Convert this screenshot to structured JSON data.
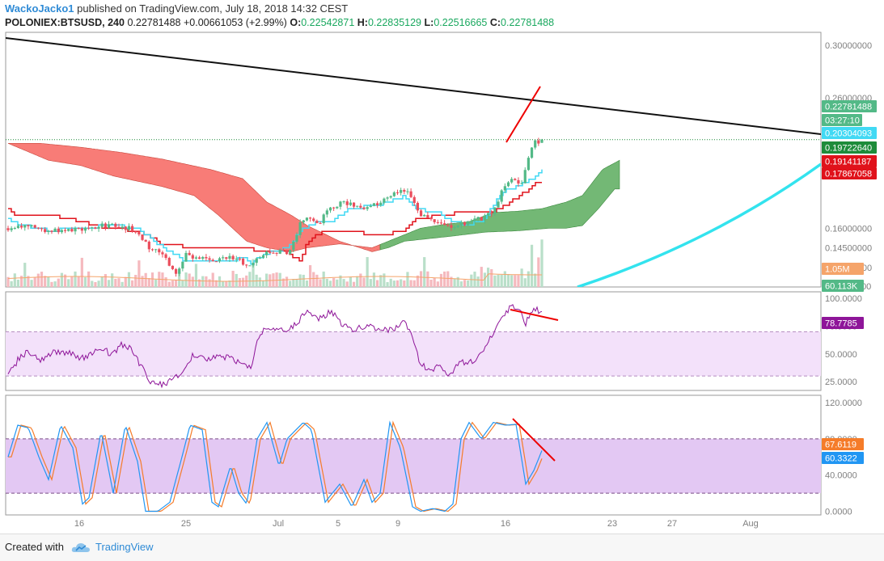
{
  "header": {
    "user": "WackoJacko1",
    "published_text": "published on TradingView.com, July 18, 2018 14:32 CEST",
    "symbol": "POLONIEX:BTSUSD, 240",
    "last": "0.22781488",
    "change": "+0.00661053 (+2.99%)",
    "o_label": "O:",
    "o_value": "0.22542871",
    "h_label": "H:",
    "h_value": "0.22835129",
    "l_label": "L:",
    "l_value": "0.22516665",
    "c_label": "C:",
    "c_value": "0.22781488"
  },
  "footer": {
    "created_with": "Created with",
    "brand": "TradingView"
  },
  "colors": {
    "up": "#53b987",
    "down": "#eb4d5c",
    "kijun": "#e0121b",
    "tenkan": "#41d9f4",
    "cloud_bear": "#f6504a",
    "cloud_bull": "#4ba44e",
    "trend": "#111111",
    "parabola": "#33e3ee",
    "rsi": "#8e1599",
    "stoch_k": "#2196f3",
    "stoch_d": "#f57c2a",
    "annot": "#ee0000",
    "band_rsi": "#f3e1fa",
    "band_stoch": "#e3c8f3"
  },
  "chart_data": [
    {
      "type": "candlestick",
      "name": "POLONIEX:BTSUSD, 240",
      "ylim": [
        0.115,
        0.31
      ],
      "y_ticks": [
        "0.30000000",
        "0.26000000",
        "0.22781488",
        "0.20304093",
        "0.19722640",
        "0.19141187",
        "0.17867058",
        "0.16000000",
        "0.14500000",
        "0.13000000",
        "0.11500000"
      ],
      "x_ticks": [
        "16",
        "25",
        "Jul",
        "5",
        "9",
        "16",
        "23",
        "27",
        "Aug"
      ],
      "price_labels": [
        {
          "text": "0.22781488",
          "color": "#53b987"
        },
        {
          "text": "03:27:10",
          "color": "#53b987"
        },
        {
          "text": "0.20304093",
          "color": "#41d9f4"
        },
        {
          "text": "0.19722640",
          "color": "#1e8c3a"
        },
        {
          "text": "0.19141187",
          "color": "#e0121b"
        },
        {
          "text": "0.17867058",
          "color": "#e0121b"
        }
      ],
      "volume_labels": [
        {
          "text": "1.05M",
          "color": "#f5a46a"
        },
        {
          "text": "60.113K",
          "color": "#53b987"
        }
      ],
      "indicators": [
        "Ichimoku Cloud",
        "Volume",
        "Trend line",
        "Parabolic curve"
      ]
    },
    {
      "type": "line",
      "name": "RSI",
      "ylim": [
        17,
        106
      ],
      "y_ticks": [
        "100.0000",
        "75.0000",
        "50.0000",
        "25.0000"
      ],
      "bands": [
        30,
        70
      ],
      "last_value": "78.7785",
      "last_color": "#8e1599"
    },
    {
      "type": "line",
      "name": "Stochastic",
      "ylim": [
        -4,
        128
      ],
      "y_ticks": [
        "120.0000",
        "80.0000",
        "40.0000",
        "0.0000"
      ],
      "bands": [
        20,
        80
      ],
      "value_labels": [
        {
          "text": "67.6119",
          "color": "#f57c2a"
        },
        {
          "text": "60.3322",
          "color": "#2196f3"
        }
      ]
    }
  ]
}
